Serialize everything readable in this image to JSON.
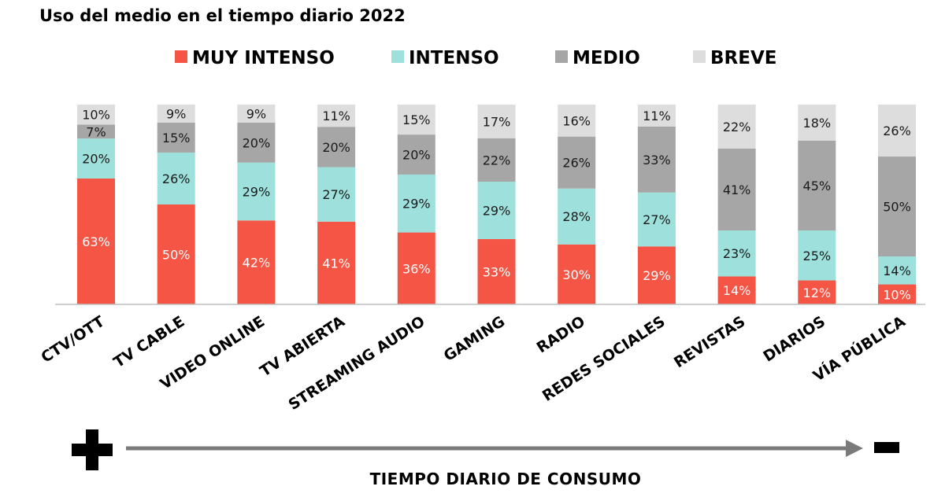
{
  "chart_data": {
    "type": "bar",
    "stacked": true,
    "title": "Uso del medio en el tiempo diario 2022",
    "categories": [
      "CTV/OTT",
      "TV CABLE",
      "VIDEO  ONLINE",
      "TV ABIERTA",
      "STREAMING AUDIO",
      "GAMING",
      "RADIO",
      "REDES SOCIALES",
      "REVISTAS",
      "DIARIOS",
      "VÍA PÚBLICA"
    ],
    "series": [
      {
        "name": "MUY INTENSO",
        "color": "#f55545",
        "label_color": "#ffffff",
        "values": [
          63,
          50,
          42,
          41,
          36,
          33,
          30,
          29,
          14,
          12,
          10
        ]
      },
      {
        "name": "INTENSO",
        "color": "#9de0dc",
        "label_color": "#1a1a1a",
        "values": [
          20,
          26,
          29,
          27,
          29,
          29,
          28,
          27,
          23,
          25,
          14
        ]
      },
      {
        "name": "MEDIO",
        "color": "#a6a6a6",
        "label_color": "#1a1a1a",
        "values": [
          7,
          15,
          20,
          20,
          20,
          22,
          26,
          33,
          41,
          45,
          50
        ]
      },
      {
        "name": "BREVE",
        "color": "#dddddd",
        "label_color": "#1a1a1a",
        "values": [
          10,
          9,
          9,
          11,
          15,
          17,
          16,
          11,
          22,
          18,
          26
        ]
      }
    ],
    "value_suffix": "%",
    "legend_position": "top",
    "grid": false,
    "axis_title": "TIEMPO DIARIO DE CONSUMO",
    "axis_start_symbol": "plus-icon",
    "axis_end_symbol": "minus-icon"
  }
}
